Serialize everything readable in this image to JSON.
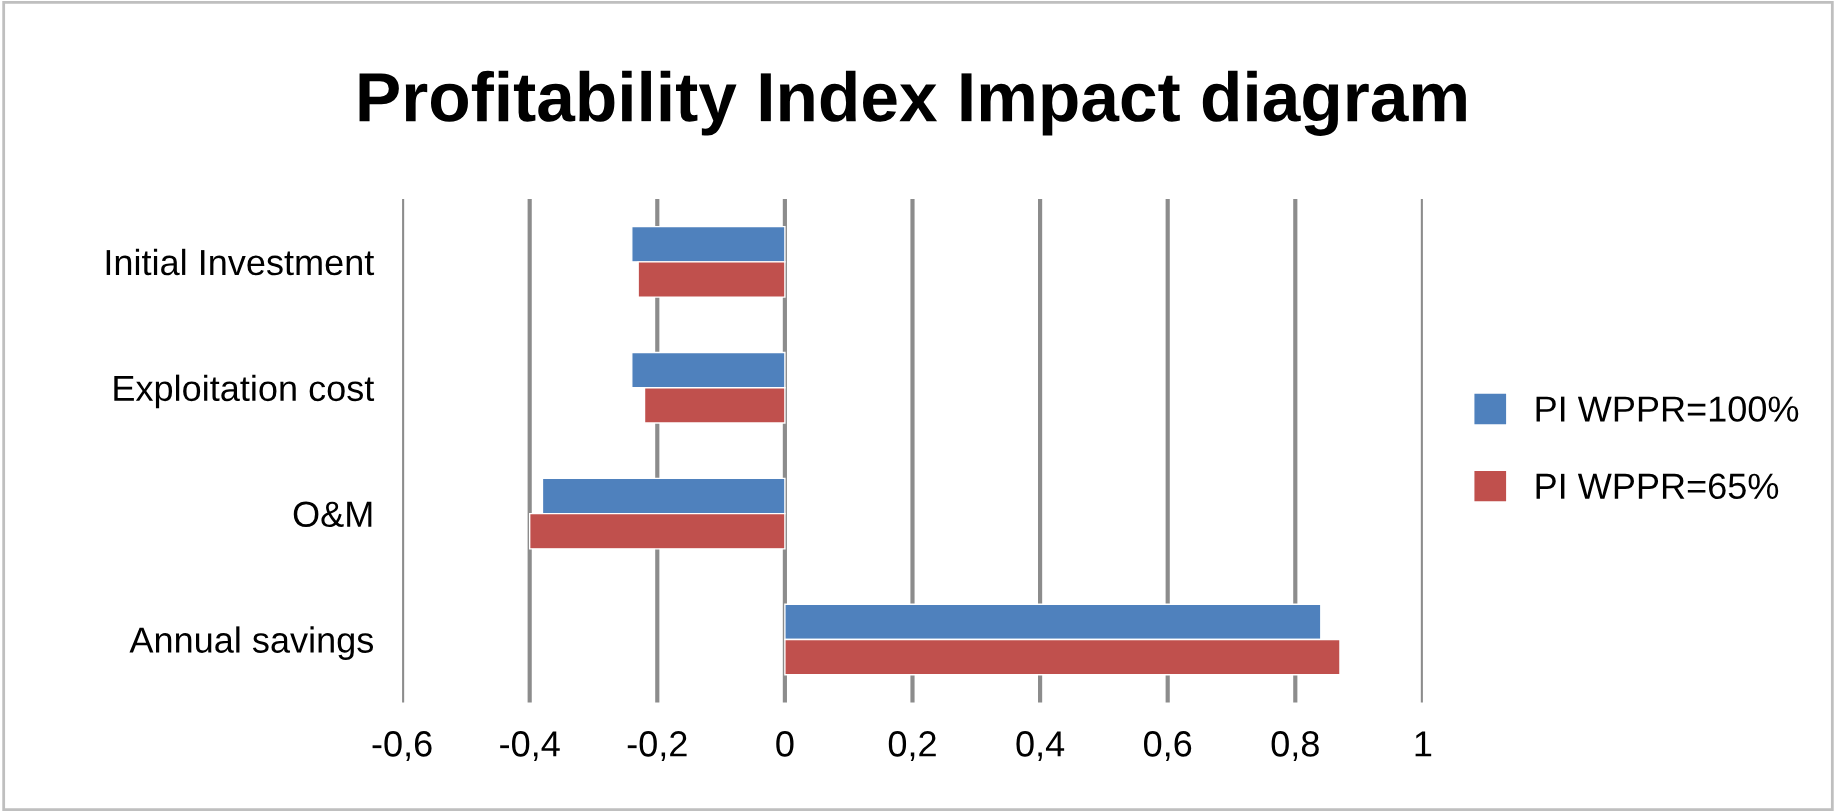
{
  "chart_data": {
    "type": "bar",
    "orientation": "horizontal",
    "title": "Profitability Index Impact diagram",
    "categories": [
      "Initial Investment",
      "Exploitation cost",
      "O&M",
      "Annual savings"
    ],
    "series": [
      {
        "name": "PI WPPR=100%",
        "color": "#4f81bd",
        "values": [
          -0.24,
          -0.24,
          -0.38,
          0.84
        ]
      },
      {
        "name": "PI WPPR=65%",
        "color": "#c0504d",
        "values": [
          -0.23,
          -0.22,
          -0.4,
          0.87
        ]
      }
    ],
    "xlim": [
      -0.6,
      1
    ],
    "xticks": [
      {
        "value": -0.6,
        "label": "-0,6"
      },
      {
        "value": -0.4,
        "label": "-0,4"
      },
      {
        "value": -0.2,
        "label": "-0,2"
      },
      {
        "value": 0,
        "label": "0"
      },
      {
        "value": 0.2,
        "label": "0,2"
      },
      {
        "value": 0.4,
        "label": "0,4"
      },
      {
        "value": 0.6,
        "label": "0,6"
      },
      {
        "value": 0.8,
        "label": "0,8"
      },
      {
        "value": 1,
        "label": "1"
      }
    ],
    "grid": "x",
    "legend": "right"
  }
}
